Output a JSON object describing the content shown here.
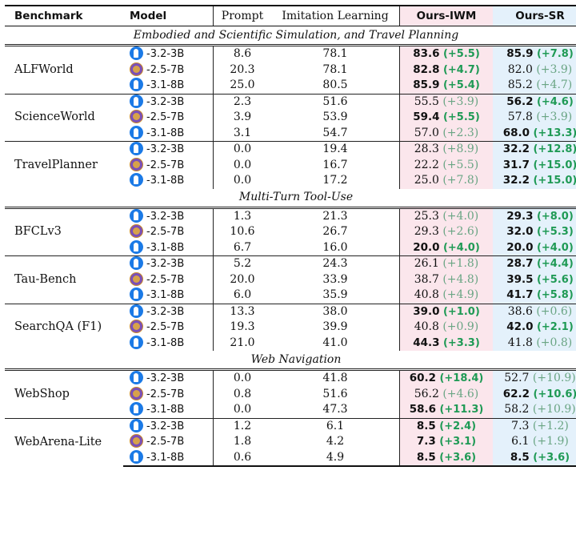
{
  "headers": {
    "benchmark": "Benchmark",
    "model": "Model",
    "prompt": "Prompt",
    "il": "Imitation Learning",
    "iwm": "Ours-IWM",
    "sr": "Ours-SR"
  },
  "models": {
    "m0": "-3.2-3B",
    "m1": "-2.5-7B",
    "m2": "-3.1-8B"
  },
  "sections": [
    "Embodied and Scientific Simulation, and Travel Planning",
    "Multi-Turn Tool-Use",
    "Web Navigation"
  ],
  "benchmarks": [
    {
      "name": "ALFWorld",
      "rows": [
        {
          "prompt": "8.6",
          "il": "78.1",
          "iwm": "83.6",
          "iwm_d": "(+5.5)",
          "sr": "85.9",
          "sr_d": "(+7.8)"
        },
        {
          "prompt": "20.3",
          "il": "78.1",
          "iwm": "82.8",
          "iwm_d": "(+4.7)",
          "sr": "82.0",
          "sr_d": "(+3.9)"
        },
        {
          "prompt": "25.0",
          "il": "80.5",
          "iwm": "85.9",
          "iwm_d": "(+5.4)",
          "sr": "85.2",
          "sr_d": "(+4.7)"
        }
      ]
    },
    {
      "name": "ScienceWorld",
      "rows": [
        {
          "prompt": "2.3",
          "il": "51.6",
          "iwm": "55.5",
          "iwm_d": "(+3.9)",
          "sr": "56.2",
          "sr_d": "(+4.6)"
        },
        {
          "prompt": "3.9",
          "il": "53.9",
          "iwm": "59.4",
          "iwm_d": "(+5.5)",
          "sr": "57.8",
          "sr_d": "(+3.9)"
        },
        {
          "prompt": "3.1",
          "il": "54.7",
          "iwm": "57.0",
          "iwm_d": "(+2.3)",
          "sr": "68.0",
          "sr_d": "(+13.3)"
        }
      ]
    },
    {
      "name": "TravelPlanner",
      "rows": [
        {
          "prompt": "0.0",
          "il": "19.4",
          "iwm": "28.3",
          "iwm_d": "(+8.9)",
          "sr": "32.2",
          "sr_d": "(+12.8)"
        },
        {
          "prompt": "0.0",
          "il": "16.7",
          "iwm": "22.2",
          "iwm_d": "(+5.5)",
          "sr": "31.7",
          "sr_d": "(+15.0)"
        },
        {
          "prompt": "0.0",
          "il": "17.2",
          "iwm": "25.0",
          "iwm_d": "(+7.8)",
          "sr": "32.2",
          "sr_d": "(+15.0)"
        }
      ]
    },
    {
      "name": "BFCLv3",
      "rows": [
        {
          "prompt": "1.3",
          "il": "21.3",
          "iwm": "25.3",
          "iwm_d": "(+4.0)",
          "sr": "29.3",
          "sr_d": "(+8.0)"
        },
        {
          "prompt": "10.6",
          "il": "26.7",
          "iwm": "29.3",
          "iwm_d": "(+2.6)",
          "sr": "32.0",
          "sr_d": "(+5.3)"
        },
        {
          "prompt": "6.7",
          "il": "16.0",
          "iwm": "20.0",
          "iwm_d": "(+4.0)",
          "sr": "20.0",
          "sr_d": "(+4.0)"
        }
      ]
    },
    {
      "name": "Tau-Bench",
      "rows": [
        {
          "prompt": "5.2",
          "il": "24.3",
          "iwm": "26.1",
          "iwm_d": "(+1.8)",
          "sr": "28.7",
          "sr_d": "(+4.4)"
        },
        {
          "prompt": "20.0",
          "il": "33.9",
          "iwm": "38.7",
          "iwm_d": "(+4.8)",
          "sr": "39.5",
          "sr_d": "(+5.6)"
        },
        {
          "prompt": "6.0",
          "il": "35.9",
          "iwm": "40.8",
          "iwm_d": "(+4.9)",
          "sr": "41.7",
          "sr_d": "(+5.8)"
        }
      ]
    },
    {
      "name": "SearchQA (F1)",
      "rows": [
        {
          "prompt": "13.3",
          "il": "38.0",
          "iwm": "39.0",
          "iwm_d": "(+1.0)",
          "sr": "38.6",
          "sr_d": "(+0.6)"
        },
        {
          "prompt": "19.3",
          "il": "39.9",
          "iwm": "40.8",
          "iwm_d": "(+0.9)",
          "sr": "42.0",
          "sr_d": "(+2.1)"
        },
        {
          "prompt": "21.0",
          "il": "41.0",
          "iwm": "44.3",
          "iwm_d": "(+3.3)",
          "sr": "41.8",
          "sr_d": "(+0.8)"
        }
      ]
    },
    {
      "name": "WebShop",
      "rows": [
        {
          "prompt": "0.0",
          "il": "41.8",
          "iwm": "60.2",
          "iwm_d": "(+18.4)",
          "sr": "52.7",
          "sr_d": "(+10.9)"
        },
        {
          "prompt": "0.8",
          "il": "51.6",
          "iwm": "56.2",
          "iwm_d": "(+4.6)",
          "sr": "62.2",
          "sr_d": "(+10.6)"
        },
        {
          "prompt": "0.0",
          "il": "47.3",
          "iwm": "58.6",
          "iwm_d": "(+11.3)",
          "sr": "58.2",
          "sr_d": "(+10.9)"
        }
      ]
    },
    {
      "name": "WebArena-Lite",
      "rows": [
        {
          "prompt": "1.2",
          "il": "6.1",
          "iwm": "8.5",
          "iwm_d": "(+2.4)",
          "sr": "7.3",
          "sr_d": "(+1.2)"
        },
        {
          "prompt": "1.8",
          "il": "4.2",
          "iwm": "7.3",
          "iwm_d": "(+3.1)",
          "sr": "6.1",
          "sr_d": "(+1.9)"
        },
        {
          "prompt": "0.6",
          "il": "4.9",
          "iwm": "8.5",
          "iwm_d": "(+3.6)",
          "sr": "8.5",
          "sr_d": "(+3.6)"
        }
      ]
    }
  ]
}
